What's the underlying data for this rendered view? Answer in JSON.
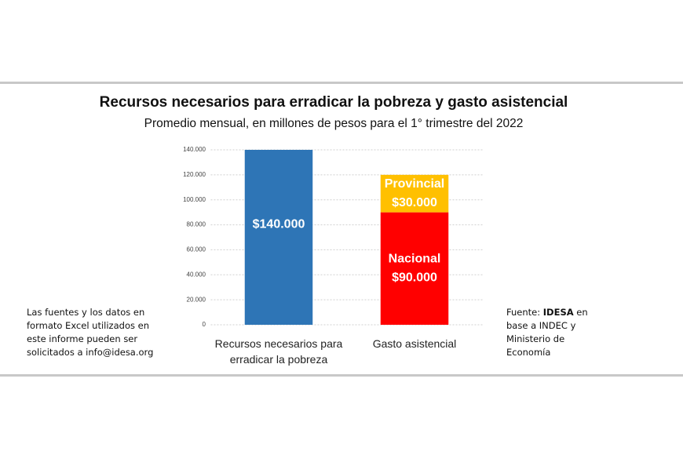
{
  "chart_data": {
    "type": "stacked-bar",
    "title": "Recursos necesarios para erradicar la pobreza y gasto asistencial",
    "subtitle": "Promedio mensual, en millones de pesos para el 1° trimestre del 2022",
    "categories": [
      "Recursos necesarios para erradicar la pobreza",
      "Gasto asistencial"
    ],
    "series": [
      {
        "color": "#2e75b6",
        "values": [
          140000,
          null
        ],
        "value_labels": [
          "$140.000",
          null
        ]
      },
      {
        "name": "Nacional",
        "color": "#ff0000",
        "values": [
          null,
          90000
        ],
        "value_labels": [
          null,
          "$90.000"
        ]
      },
      {
        "name": "Provincial",
        "color": "#ffc000",
        "values": [
          null,
          30000
        ],
        "value_labels": [
          null,
          "$30.000"
        ]
      }
    ],
    "ylim": [
      0,
      140000
    ],
    "yticks": [
      0,
      {
        "value": 20000,
        "label": "20.000"
      },
      {
        "value": 40000,
        "label": "40.000"
      },
      {
        "value": 60000,
        "label": "60.000"
      },
      {
        "value": 80000,
        "label": "80.000"
      },
      {
        "value": 100000,
        "label": "100.000"
      },
      {
        "value": 120000,
        "label": "120.000"
      },
      {
        "value": 140000,
        "label": "140.000"
      }
    ],
    "grid": true
  },
  "notes": {
    "left": "Las fuentes y los datos en formato Excel utilizados en este informe pueden ser solicitados a info@idesa.org",
    "source_prefix": "Fuente:",
    "source_name": "IDESA",
    "source_rest": "en base a INDEC y Ministerio de Economía"
  }
}
